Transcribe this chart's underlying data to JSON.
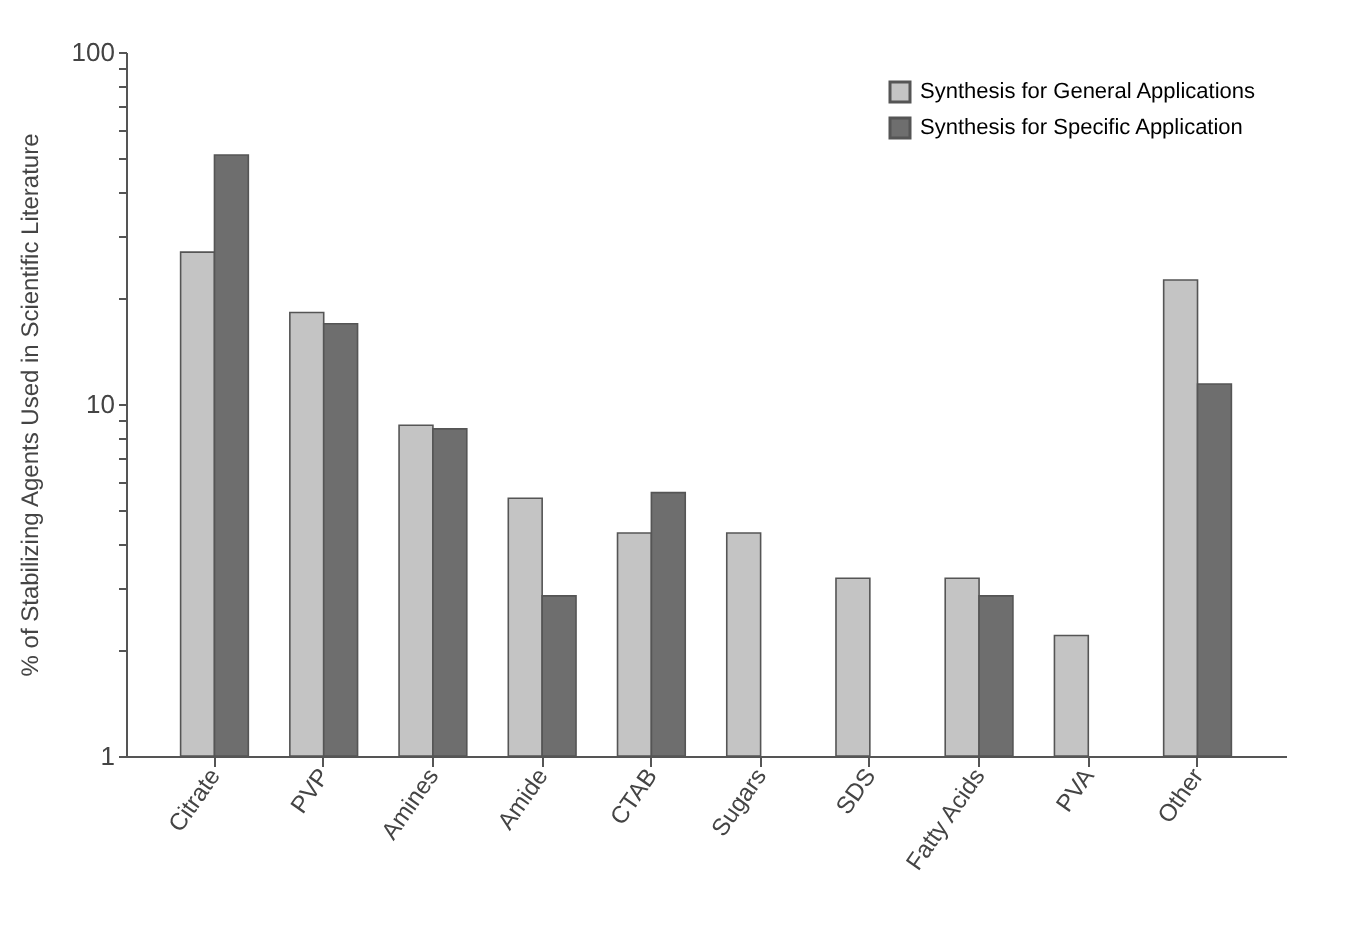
{
  "chart_data": {
    "type": "bar",
    "ylabel": "% of Stabilizing Agents Used in Scientific Literature",
    "categories": [
      "Citrate",
      "PVP",
      "Amines",
      "Amide",
      "CTAB",
      "Sugars",
      "SDS",
      "Fatty Acids",
      "PVA",
      "Other"
    ],
    "series": [
      {
        "name": "Synthesis for General Applications",
        "color": "#c4c4c4",
        "values": [
          27,
          18.2,
          8.7,
          5.4,
          4.3,
          4.3,
          3.2,
          3.2,
          2.2,
          22.5
        ]
      },
      {
        "name": "Synthesis for Specific Application",
        "color": "#6e6e6e",
        "values": [
          51,
          16.9,
          8.5,
          2.85,
          5.6,
          null,
          null,
          2.85,
          null,
          11.4
        ]
      }
    ],
    "log": true,
    "ylim": [
      1,
      100
    ],
    "yticks": [
      1,
      {
        "value": 2,
        "label": null
      },
      {
        "value": 3,
        "label": null
      },
      {
        "value": 4,
        "label": null
      },
      {
        "value": 5,
        "label": null
      },
      {
        "value": 6,
        "label": null
      },
      {
        "value": 7,
        "label": null
      },
      {
        "value": 8,
        "label": null
      },
      {
        "value": 9,
        "label": null
      },
      10,
      {
        "value": 20,
        "label": null
      },
      {
        "value": 30,
        "label": null
      },
      {
        "value": 40,
        "label": null
      },
      {
        "value": 50,
        "label": null
      },
      {
        "value": 60,
        "label": null
      },
      {
        "value": 70,
        "label": null
      },
      {
        "value": 80,
        "label": null
      },
      {
        "value": 90,
        "label": null
      },
      100
    ],
    "grid": false,
    "legend": "top right"
  }
}
